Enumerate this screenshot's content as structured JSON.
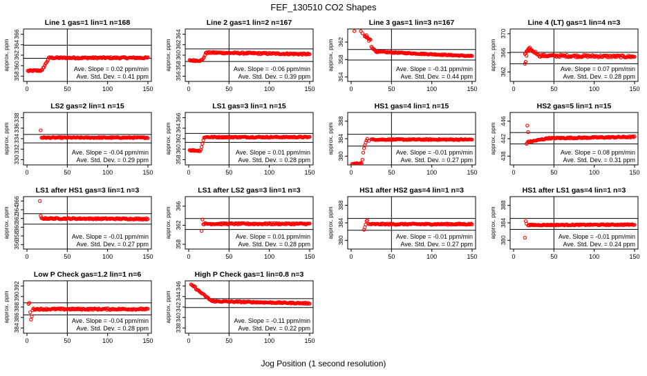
{
  "page": {
    "title": "FEF_130510  CO2 Shapes",
    "xlabel": "Jog Position (1 second resolution)"
  },
  "style": {
    "point_color": "#ff0000",
    "axis_color": "#000000"
  },
  "chart_data": [
    {
      "type": "scatter",
      "title": "Line 1 gas=1 lin=1 n=168",
      "ylabel": "approx. ppm",
      "xlim": [
        0,
        150
      ],
      "ylim": [
        357,
        367
      ],
      "yticks": [
        358,
        360,
        362,
        364,
        366
      ],
      "xticks": [
        0,
        50,
        100,
        150
      ],
      "ref_lines": [
        361.4,
        363.9
      ],
      "vline": 50,
      "slope_text": "Ave. Slope =  0.02  ppm/min",
      "std_text": "Ave. Std. Dev. =  0.41  ppm",
      "series": [
        {
          "segments": [
            [
              1,
              359.0,
              19,
              359.1
            ],
            [
              20,
              359.5,
              27,
              361.4
            ],
            [
              28,
              361.5,
              150,
              361.5
            ]
          ],
          "noise": 0.15,
          "scatter": []
        }
      ]
    },
    {
      "type": "scatter",
      "title": "Line 2 gas=1 lin=2 n=167",
      "ylabel": "approx. ppm",
      "xlim": [
        0,
        150
      ],
      "ylim": [
        355,
        365
      ],
      "yticks": [
        356,
        358,
        360,
        362,
        364
      ],
      "xticks": [
        0,
        50,
        100,
        150
      ],
      "ref_lines": [
        358.8,
        361.2
      ],
      "vline": 50,
      "slope_text": "Ave. Slope = -0.06  ppm/min",
      "std_text": "Ave. Std. Dev. =  0.39  ppm",
      "series": [
        {
          "segments": [
            [
              1,
              359.0,
              16,
              359.0
            ],
            [
              17,
              359.1,
              22,
              360.6
            ],
            [
              23,
              360.5,
              150,
              360.2
            ]
          ],
          "noise": 0.15,
          "scatter": []
        }
      ]
    },
    {
      "type": "scatter",
      "title": "Line 3 gas=1 lin=3 n=167",
      "ylabel": "approx. ppm",
      "xlim": [
        0,
        150
      ],
      "ylim": [
        353,
        365
      ],
      "yticks": [
        354,
        358,
        362
      ],
      "xticks": [
        0,
        50,
        100,
        150
      ],
      "ref_lines": [
        357.9,
        360.3
      ],
      "vline": 50,
      "slope_text": "Ave. Slope = -0.31  ppm/min",
      "std_text": "Ave. Std. Dev. =  0.44  ppm",
      "series": [
        {
          "segments": [
            [
              17,
              363.3,
              24,
              362.5
            ],
            [
              25,
              361.0,
              30,
              360.0
            ],
            [
              31,
              359.8,
              150,
              358.8
            ]
          ],
          "noise": 0.12,
          "scatter": [
            [
              4,
              364.5
            ],
            [
              12,
              364.5
            ],
            [
              14,
              364.0
            ],
            [
              17,
              363.3
            ],
            [
              19,
              363.6
            ],
            [
              20,
              363.1
            ],
            [
              22,
              362.3
            ]
          ]
        }
      ]
    },
    {
      "type": "scatter",
      "title": "Line 4 (LT) gas=1 lin=4 n=3",
      "ylabel": "approx. ppm",
      "xlim": [
        0,
        150
      ],
      "ylim": [
        360,
        371
      ],
      "yticks": [
        362,
        366,
        370
      ],
      "xticks": [
        0,
        50,
        100,
        150
      ],
      "ref_lines": [
        363.7,
        366.1
      ],
      "vline": 50,
      "slope_text": "Ave. Slope =  0.07  ppm/min",
      "std_text": "Ave. Std. Dev. =  0.28  ppm",
      "series": [
        {
          "segments": [
            [
              14,
              365.8,
              20,
              366.9
            ],
            [
              21,
              366.6,
              30,
              365.8
            ],
            [
              31,
              365.4,
              150,
              365.2
            ]
          ],
          "noise": 0.25,
          "scatter": [
            [
              14,
              363.7
            ],
            [
              15,
              364.1
            ],
            [
              16,
              365.4
            ],
            [
              18,
              366.5
            ],
            [
              21,
              366.7
            ]
          ]
        }
      ]
    },
    {
      "type": "scatter",
      "title": "LS2 gas=2 lin=1 n=15",
      "ylabel": "approx. ppm",
      "xlim": [
        0,
        150
      ],
      "ylim": [
        329,
        339
      ],
      "yticks": [
        330,
        332,
        334,
        336,
        338
      ],
      "xticks": [
        0,
        50,
        100,
        150
      ],
      "ref_lines": [
        333.2,
        334.8
      ],
      "vline": 50,
      "slope_text": "Ave. Slope = -0.04  ppm/min",
      "std_text": "Ave. Std. Dev. =  0.29  ppm",
      "series": [
        {
          "segments": [
            [
              18,
              334.2,
              150,
              334.2
            ]
          ],
          "noise": 0.1,
          "scatter": [
            [
              17,
              335.6
            ]
          ]
        }
      ]
    },
    {
      "type": "scatter",
      "title": "LS1 gas=3 lin=1 n=15",
      "ylabel": "approx. ppm",
      "xlim": [
        0,
        150
      ],
      "ylim": [
        357,
        367
      ],
      "yticks": [
        358,
        360,
        362,
        364,
        366
      ],
      "xticks": [
        0,
        50,
        100,
        150
      ],
      "ref_lines": [
        361.3,
        363.0
      ],
      "vline": 50,
      "slope_text": "Ave. Slope =  0.01  ppm/min",
      "std_text": "Ave. Std. Dev. =  0.28  ppm",
      "series": [
        {
          "segments": [
            [
              1,
              359.8,
              14,
              359.7
            ],
            [
              15,
              359.9,
              19,
              362.2
            ],
            [
              20,
              362.3,
              150,
              362.3
            ]
          ],
          "noise": 0.12,
          "scatter": []
        }
      ]
    },
    {
      "type": "scatter",
      "title": "HS1 gas=4 lin=1 n=15",
      "ylabel": "approx. ppm",
      "xlim": [
        0,
        150
      ],
      "ylim": [
        378,
        390
      ],
      "yticks": [
        380,
        384,
        388
      ],
      "xticks": [
        0,
        50,
        100,
        150
      ],
      "ref_lines": [
        382.3,
        385.0
      ],
      "vline": 50,
      "slope_text": "Ave. Slope = -0.01  ppm/min",
      "std_text": "Ave. Std. Dev. =  0.27  ppm",
      "series": [
        {
          "segments": [
            [
              1,
              378.2,
              13,
              378.4
            ],
            [
              25,
              383.8,
              150,
              383.8
            ]
          ],
          "noise": 0.12,
          "scatter": [
            [
              14,
              379.2
            ],
            [
              15,
              380.8
            ],
            [
              16,
              381.8
            ],
            [
              17,
              382.5
            ],
            [
              18,
              383.1
            ],
            [
              19,
              383.6
            ],
            [
              20,
              384.0
            ],
            [
              22,
              383.5
            ]
          ]
        }
      ]
    },
    {
      "type": "scatter",
      "title": "HS2 gas=5 lin=1 n=15",
      "ylabel": "approx. ppm",
      "xlim": [
        0,
        150
      ],
      "ylim": [
        436,
        448
      ],
      "yticks": [
        438,
        442,
        446
      ],
      "xticks": [
        0,
        50,
        100,
        150
      ],
      "ref_lines": [
        440.8,
        443.4
      ],
      "vline": 50,
      "slope_text": "Ave. Slope =  0.08  ppm/min",
      "std_text": "Ave. Std. Dev. =  0.31  ppm",
      "series": [
        {
          "segments": [
            [
              17,
              441.2,
              40,
              442.0
            ],
            [
              41,
              442.1,
              150,
              442.4
            ]
          ],
          "noise": 0.15,
          "scatter": [
            [
              16,
              440.8
            ],
            [
              17,
              445.0
            ],
            [
              18,
              443.5
            ]
          ]
        }
      ]
    },
    {
      "type": "scatter",
      "title": "LS1 after HS1 gas=3 lin=1 n=3",
      "ylabel": "approx. ppm",
      "xlim": [
        0,
        150
      ],
      "ylim": [
        355,
        367
      ],
      "yticks": [
        356,
        358,
        360,
        362,
        364,
        366
      ],
      "xticks": [
        0,
        50,
        100,
        150
      ],
      "ref_lines": [
        360.7,
        363.1
      ],
      "vline": 50,
      "slope_text": "Ave. Slope = -0.01  ppm/min",
      "std_text": "Ave. Std. Dev. =  0.27  ppm",
      "series": [
        {
          "segments": [
            [
              18,
              362.0,
              150,
              361.9
            ]
          ],
          "noise": 0.15,
          "scatter": [
            [
              16,
              366.0
            ],
            [
              17,
              362.6
            ]
          ]
        }
      ]
    },
    {
      "type": "scatter",
      "title": "LS1 after LS2 gas=3 lin=1 n=3",
      "ylabel": "approx. ppm",
      "xlim": [
        0,
        150
      ],
      "ylim": [
        357,
        368
      ],
      "yticks": [
        358,
        362,
        366
      ],
      "xticks": [
        0,
        50,
        100,
        150
      ],
      "ref_lines": [
        361.1,
        363.4
      ],
      "vline": 50,
      "slope_text": "Ave. Slope =  0.01  ppm/min",
      "std_text": "Ave. Std. Dev. =  0.28  ppm",
      "series": [
        {
          "segments": [
            [
              18,
              362.3,
              150,
              362.3
            ]
          ],
          "noise": 0.15,
          "scatter": [
            [
              16,
              360.8
            ],
            [
              17,
              363.2
            ]
          ]
        }
      ]
    },
    {
      "type": "scatter",
      "title": "HS1 after HS2 gas=4 lin=1 n=3",
      "ylabel": "approx. ppm",
      "xlim": [
        0,
        150
      ],
      "ylim": [
        378,
        390
      ],
      "yticks": [
        380,
        384,
        388
      ],
      "xticks": [
        0,
        50,
        100,
        150
      ],
      "ref_lines": [
        382.3,
        385.0
      ],
      "vline": 50,
      "slope_text": "Ave. Slope = -0.01  ppm/min",
      "std_text": "Ave. Std. Dev. =  0.27  ppm",
      "series": [
        {
          "segments": [
            [
              22,
              383.7,
              150,
              383.7
            ]
          ],
          "noise": 0.15,
          "scatter": [
            [
              16,
              382.4
            ],
            [
              17,
              383.0
            ],
            [
              18,
              383.6
            ],
            [
              19,
              384.4
            ],
            [
              20,
              384.6
            ]
          ]
        }
      ]
    },
    {
      "type": "scatter",
      "title": "HS1 after LS1 gas=4 lin=1 n=3",
      "ylabel": "approx. ppm",
      "xlim": [
        0,
        150
      ],
      "ylim": [
        378,
        390
      ],
      "yticks": [
        380,
        384,
        388
      ],
      "xticks": [
        0,
        50,
        100,
        150
      ],
      "ref_lines": [
        382.5,
        385.0
      ],
      "vline": 50,
      "slope_text": "Ave. Slope = -0.01  ppm/min",
      "std_text": "Ave. Std. Dev. =  0.24  ppm",
      "series": [
        {
          "segments": [
            [
              18,
              383.5,
              150,
              383.6
            ]
          ],
          "noise": 0.12,
          "scatter": [
            [
              14,
              380.6
            ],
            [
              15,
              384.4
            ],
            [
              16,
              383.8
            ]
          ]
        }
      ]
    },
    {
      "type": "scatter",
      "title": "Low P Check gas=1.2 lin=1 n=6",
      "ylabel": "approx. ppm",
      "xlim": [
        0,
        150
      ],
      "ylim": [
        383,
        393
      ],
      "yticks": [
        384,
        386,
        388,
        390,
        392
      ],
      "xticks": [
        0,
        50,
        100,
        150
      ],
      "ref_lines": [
        386.5,
        388.8
      ],
      "vline": 50,
      "slope_text": "Ave. Slope = -0.04  ppm/min",
      "std_text": "Ave. Std. Dev. =  0.28  ppm",
      "series": [
        {
          "segments": [
            [
              8,
              387.6,
              150,
              387.6
            ]
          ],
          "noise": 0.15,
          "scatter": [
            [
              2,
              388.6
            ],
            [
              3,
              388.8
            ],
            [
              4,
              387.0
            ],
            [
              5,
              385.6
            ],
            [
              6,
              386.2
            ],
            [
              7,
              387.4
            ]
          ]
        }
      ]
    },
    {
      "type": "scatter",
      "title": "High P Check gas=1 lin=0.8 n=3",
      "ylabel": "approx. ppm",
      "xlim": [
        0,
        150
      ],
      "ylim": [
        337,
        347
      ],
      "yticks": [
        338,
        340,
        342,
        344,
        346
      ],
      "xticks": [
        0,
        50,
        100,
        150
      ],
      "ref_lines": [
        341.9,
        343.6
      ],
      "vline": 50,
      "slope_text": "Ave. Slope = -0.11  ppm/min",
      "std_text": "Ave. Std. Dev. =  0.22  ppm",
      "series": [
        {
          "segments": [
            [
              3,
              346.2,
              8,
              345.8
            ],
            [
              9,
              345.5,
              28,
              343.2
            ],
            [
              29,
              343.1,
              150,
              342.7
            ]
          ],
          "noise": 0.12,
          "scatter": []
        }
      ]
    }
  ]
}
